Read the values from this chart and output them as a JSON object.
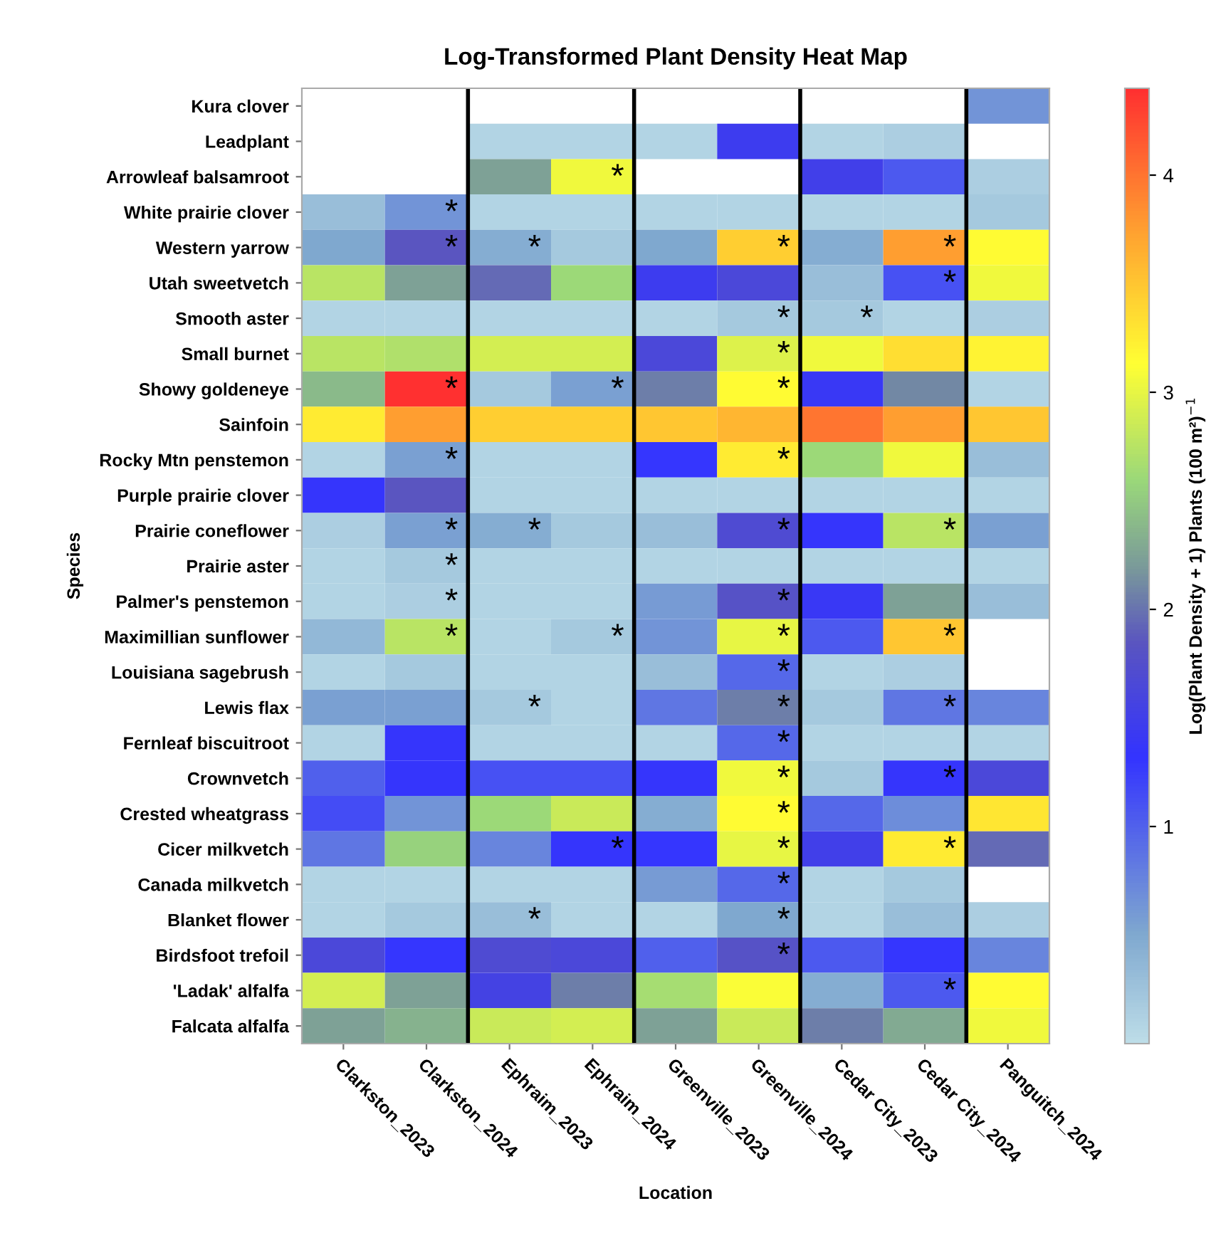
{
  "chart_data": {
    "type": "heatmap",
    "title": "Log-Transformed Plant Density Heat Map",
    "xlabel": "Location",
    "ylabel": "Species",
    "clabel": "Log(Plant Density + 1) Plants (100 m²)$^{−1}$",
    "categories": [
      "Clarkston_2023",
      "Clarkston_2024",
      "Ephraim_2023",
      "Ephraim_2024",
      "Greenville_2023",
      "Greenville_2024",
      "Cedar City_2023",
      "Cedar City_2024",
      "Panguitch_2024"
    ],
    "y_categories": [
      "Kura clover",
      "Leadplant",
      "Arrowleaf balsamroot",
      "White prairie clover",
      "Western yarrow",
      "Utah sweetvetch",
      "Smooth aster",
      "Small burnet",
      "Showy goldeneye",
      "Sainfoin",
      "Rocky Mtn penstemon",
      "Purple prairie clover",
      "Prairie coneflower",
      "Prairie aster",
      "Palmer's penstemon",
      "Maximillian sunflower",
      "Louisiana sagebrush",
      "Lewis flax",
      "Fernleaf biscuitroot",
      "Crownvetch",
      "Crested wheatgrass",
      "Cicer milkvetch",
      "Canada milkvetch",
      "Blanket flower",
      "Birdsfoot trefoil",
      "'Ladak' alfalfa",
      "Falcata alfalfa"
    ],
    "cells": [
      [
        null,
        null,
        null,
        null,
        null,
        null,
        null,
        null,
        0.65
      ],
      [
        null,
        null,
        0.1,
        0.1,
        0.1,
        1.45,
        0.1,
        0.15,
        null
      ],
      [
        null,
        null,
        2.25,
        3.05,
        null,
        null,
        1.5,
        1.05,
        0.15
      ],
      [
        0.3,
        0.65,
        0.1,
        0.1,
        0.1,
        0.1,
        0.1,
        0.1,
        0.2
      ],
      [
        0.5,
        1.85,
        0.45,
        0.2,
        0.5,
        3.45,
        0.45,
        3.75,
        3.15
      ],
      [
        2.75,
        2.25,
        1.95,
        2.6,
        1.45,
        1.65,
        0.3,
        1.1,
        3.05
      ],
      [
        0.1,
        0.1,
        0.1,
        0.1,
        0.1,
        0.2,
        0.2,
        0.1,
        0.15
      ],
      [
        2.75,
        2.7,
        2.9,
        2.9,
        1.65,
        2.95,
        3.05,
        3.35,
        3.2
      ],
      [
        2.4,
        4.4,
        0.2,
        0.55,
        2.05,
        3.15,
        1.4,
        2.1,
        0.1
      ],
      [
        3.25,
        3.75,
        3.45,
        3.45,
        3.5,
        3.6,
        4.0,
        3.75,
        3.5
      ],
      [
        0.1,
        0.55,
        0.1,
        0.1,
        1.3,
        3.25,
        2.6,
        3.05,
        0.3
      ],
      [
        1.35,
        1.85,
        0.1,
        0.1,
        0.1,
        0.1,
        0.1,
        0.1,
        0.1
      ],
      [
        0.15,
        0.55,
        0.45,
        0.2,
        0.3,
        1.7,
        1.35,
        2.75,
        0.55
      ],
      [
        0.1,
        0.2,
        0.1,
        0.1,
        0.1,
        0.1,
        0.1,
        0.1,
        0.1
      ],
      [
        0.1,
        0.15,
        0.1,
        0.1,
        0.6,
        1.8,
        1.4,
        2.25,
        0.3
      ],
      [
        0.35,
        2.75,
        0.1,
        0.2,
        0.65,
        3.0,
        1.05,
        3.5,
        null
      ],
      [
        0.1,
        0.2,
        0.1,
        0.1,
        0.3,
        0.95,
        0.1,
        0.15,
        null
      ],
      [
        0.55,
        0.55,
        0.2,
        0.1,
        0.85,
        2.05,
        0.2,
        0.85,
        0.75
      ],
      [
        0.1,
        1.35,
        0.1,
        0.1,
        0.1,
        0.95,
        0.1,
        0.1,
        0.1
      ],
      [
        1.0,
        1.35,
        1.1,
        1.1,
        1.35,
        3.05,
        0.2,
        1.35,
        1.65
      ],
      [
        1.15,
        0.65,
        2.6,
        2.85,
        0.45,
        3.15,
        0.95,
        0.7,
        3.3
      ],
      [
        0.85,
        2.55,
        0.75,
        1.35,
        1.3,
        3.0,
        1.5,
        3.25,
        1.95
      ],
      [
        0.1,
        0.1,
        0.1,
        0.1,
        0.6,
        0.95,
        0.1,
        0.2,
        null
      ],
      [
        0.1,
        0.2,
        0.3,
        0.1,
        0.1,
        0.5,
        0.1,
        0.3,
        0.15
      ],
      [
        1.65,
        1.3,
        1.7,
        1.65,
        1.0,
        1.8,
        1.05,
        1.3,
        0.75
      ],
      [
        2.9,
        2.25,
        1.55,
        2.05,
        2.65,
        3.1,
        0.45,
        1.05,
        3.15
      ],
      [
        2.25,
        2.35,
        2.85,
        2.9,
        2.25,
        2.85,
        2.05,
        2.3,
        3.05
      ]
    ],
    "cell_labels": [
      [
        null,
        null,
        null,
        null,
        null,
        null,
        null,
        null,
        null
      ],
      [
        null,
        null,
        null,
        null,
        null,
        null,
        null,
        null,
        null
      ],
      [
        null,
        null,
        null,
        "*",
        null,
        null,
        null,
        null,
        null
      ],
      [
        null,
        "*",
        null,
        null,
        null,
        null,
        null,
        null,
        null
      ],
      [
        null,
        "*",
        "*",
        null,
        null,
        "*",
        null,
        "*",
        null
      ],
      [
        null,
        null,
        null,
        null,
        null,
        null,
        null,
        "*",
        null
      ],
      [
        null,
        null,
        null,
        null,
        null,
        "*",
        "*",
        null,
        null
      ],
      [
        null,
        null,
        null,
        null,
        null,
        "*",
        null,
        null,
        null
      ],
      [
        null,
        "*",
        null,
        "*",
        null,
        "*",
        null,
        null,
        null
      ],
      [
        null,
        null,
        null,
        null,
        null,
        null,
        null,
        null,
        null
      ],
      [
        null,
        "*",
        null,
        null,
        null,
        "*",
        null,
        null,
        null
      ],
      [
        null,
        null,
        null,
        null,
        null,
        null,
        null,
        null,
        null
      ],
      [
        null,
        "*",
        "*",
        null,
        null,
        "*",
        null,
        "*",
        null
      ],
      [
        null,
        "*",
        null,
        null,
        null,
        null,
        null,
        null,
        null
      ],
      [
        null,
        "*",
        null,
        null,
        null,
        "*",
        null,
        null,
        null
      ],
      [
        null,
        "*",
        null,
        "*",
        null,
        "*",
        null,
        "*",
        null
      ],
      [
        null,
        null,
        null,
        null,
        null,
        "*",
        null,
        null,
        null
      ],
      [
        null,
        null,
        "*",
        null,
        null,
        "*",
        null,
        "*",
        null
      ],
      [
        null,
        null,
        null,
        null,
        null,
        "*",
        null,
        null,
        null
      ],
      [
        null,
        null,
        null,
        null,
        null,
        "*",
        null,
        "*",
        null
      ],
      [
        null,
        null,
        null,
        null,
        null,
        "*",
        null,
        null,
        null
      ],
      [
        null,
        null,
        null,
        "*",
        null,
        "*",
        null,
        "*",
        null
      ],
      [
        null,
        null,
        null,
        null,
        null,
        "*",
        null,
        null,
        null
      ],
      [
        null,
        null,
        "*",
        null,
        null,
        "*",
        null,
        null,
        null
      ],
      [
        null,
        null,
        null,
        null,
        null,
        "*",
        null,
        null,
        null
      ],
      [
        null,
        null,
        null,
        null,
        null,
        null,
        null,
        "*",
        null
      ],
      [
        null,
        null,
        null,
        null,
        null,
        null,
        null,
        null,
        null
      ]
    ],
    "clim": [
      0,
      4.4
    ],
    "cticks": [
      1,
      2,
      3,
      4
    ]
  }
}
